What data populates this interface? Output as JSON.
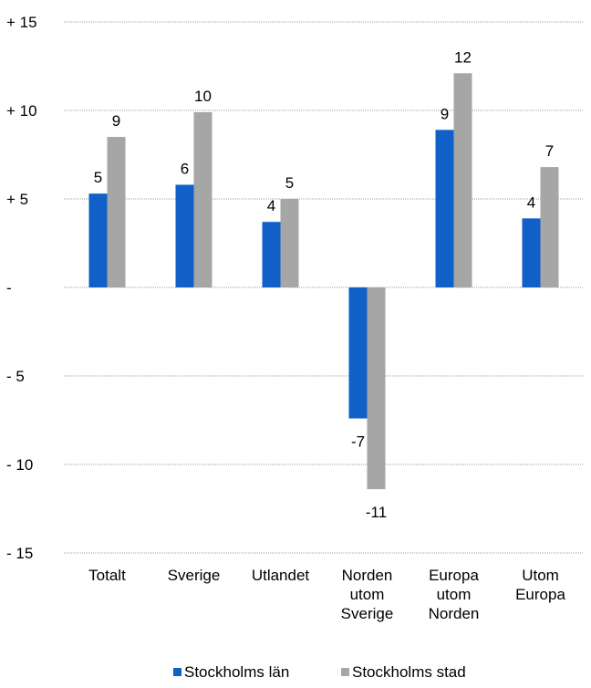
{
  "chart_data": {
    "type": "bar",
    "title": "",
    "xlabel": "",
    "ylabel": "",
    "ylim": [
      -15,
      15
    ],
    "yticks": [
      15,
      10,
      5,
      0,
      -5,
      -10,
      -15
    ],
    "ytick_labels": [
      "+ 15",
      "+ 10",
      "+ 5",
      "-",
      "- 5",
      "- 10",
      "- 15"
    ],
    "grid": "horizontal",
    "legend_position": "bottom",
    "categories": [
      [
        "Totalt"
      ],
      [
        "Sverige"
      ],
      [
        "Utlandet"
      ],
      [
        "Norden",
        "utom",
        "Sverige"
      ],
      [
        "Europa",
        "utom",
        "Norden"
      ],
      [
        "Utom",
        "Europa"
      ]
    ],
    "series": [
      {
        "name": "Stockholms län",
        "color": "#1060C8",
        "values": [
          5.3,
          5.8,
          3.7,
          -7.4,
          8.9,
          3.9
        ],
        "labels": [
          "5",
          "6",
          "4",
          "-7",
          "9",
          "4"
        ]
      },
      {
        "name": "Stockholms stad",
        "color": "#A6A6A6",
        "values": [
          8.5,
          9.9,
          5.0,
          -11.4,
          12.1,
          6.8
        ],
        "labels": [
          "9",
          "10",
          "5",
          "-11",
          "12",
          "7"
        ]
      }
    ]
  }
}
